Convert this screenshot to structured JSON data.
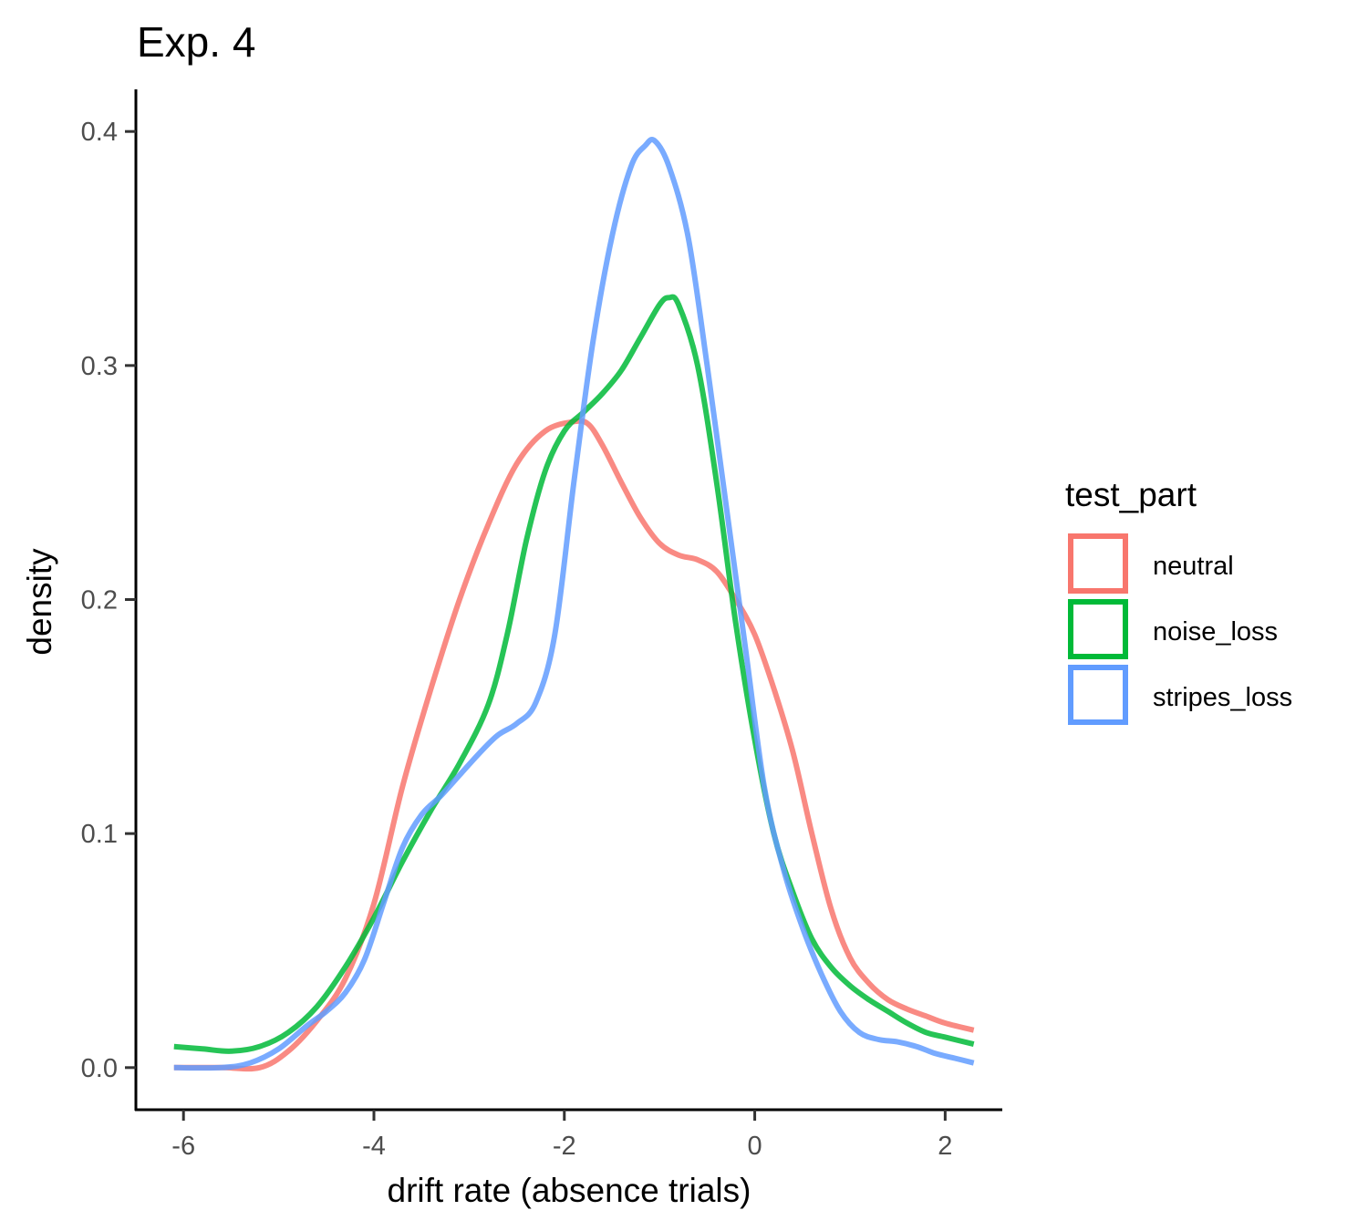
{
  "chart_data": {
    "type": "line",
    "title": "Exp. 4",
    "xlabel": "drift rate (absence trials)",
    "ylabel": "density",
    "xlim": [
      -6.5,
      2.6
    ],
    "ylim": [
      -0.018,
      0.418
    ],
    "x_ticks": [
      -6,
      -4,
      -2,
      0,
      2
    ],
    "y_ticks": [
      0.0,
      0.1,
      0.2,
      0.3,
      0.4
    ],
    "x_tick_labels": [
      "-6",
      "-4",
      "-2",
      "0",
      "2"
    ],
    "y_tick_labels": [
      "0.0",
      "0.1",
      "0.2",
      "0.3",
      "0.4"
    ],
    "grid": false,
    "legend": {
      "title": "test_part",
      "position": "right"
    },
    "series": [
      {
        "name": "neutral",
        "color": "#F8766D",
        "points": [
          [
            -6.1,
            0.0
          ],
          [
            -5.6,
            0.0
          ],
          [
            -5.2,
            0.0
          ],
          [
            -4.9,
            0.007
          ],
          [
            -4.6,
            0.02
          ],
          [
            -4.3,
            0.038
          ],
          [
            -4.0,
            0.07
          ],
          [
            -3.7,
            0.12
          ],
          [
            -3.4,
            0.162
          ],
          [
            -3.1,
            0.2
          ],
          [
            -2.8,
            0.232
          ],
          [
            -2.5,
            0.258
          ],
          [
            -2.2,
            0.272
          ],
          [
            -1.9,
            0.276
          ],
          [
            -1.75,
            0.275
          ],
          [
            -1.6,
            0.266
          ],
          [
            -1.4,
            0.25
          ],
          [
            -1.2,
            0.235
          ],
          [
            -1.0,
            0.224
          ],
          [
            -0.8,
            0.219
          ],
          [
            -0.6,
            0.217
          ],
          [
            -0.4,
            0.212
          ],
          [
            -0.2,
            0.2
          ],
          [
            0.0,
            0.185
          ],
          [
            0.2,
            0.162
          ],
          [
            0.4,
            0.135
          ],
          [
            0.6,
            0.1
          ],
          [
            0.8,
            0.068
          ],
          [
            1.0,
            0.047
          ],
          [
            1.2,
            0.036
          ],
          [
            1.4,
            0.029
          ],
          [
            1.6,
            0.025
          ],
          [
            1.8,
            0.022
          ],
          [
            2.0,
            0.019
          ],
          [
            2.3,
            0.016
          ]
        ]
      },
      {
        "name": "noise_loss",
        "color": "#00BA38",
        "points": [
          [
            -6.1,
            0.009
          ],
          [
            -5.8,
            0.008
          ],
          [
            -5.5,
            0.007
          ],
          [
            -5.2,
            0.009
          ],
          [
            -4.9,
            0.015
          ],
          [
            -4.6,
            0.026
          ],
          [
            -4.3,
            0.043
          ],
          [
            -4.0,
            0.064
          ],
          [
            -3.7,
            0.088
          ],
          [
            -3.4,
            0.11
          ],
          [
            -3.1,
            0.13
          ],
          [
            -2.8,
            0.155
          ],
          [
            -2.6,
            0.185
          ],
          [
            -2.4,
            0.225
          ],
          [
            -2.2,
            0.255
          ],
          [
            -2.0,
            0.272
          ],
          [
            -1.8,
            0.28
          ],
          [
            -1.6,
            0.288
          ],
          [
            -1.4,
            0.298
          ],
          [
            -1.2,
            0.312
          ],
          [
            -1.0,
            0.326
          ],
          [
            -0.9,
            0.329
          ],
          [
            -0.8,
            0.326
          ],
          [
            -0.6,
            0.3
          ],
          [
            -0.4,
            0.25
          ],
          [
            -0.2,
            0.19
          ],
          [
            0.0,
            0.14
          ],
          [
            0.2,
            0.1
          ],
          [
            0.4,
            0.075
          ],
          [
            0.6,
            0.055
          ],
          [
            0.8,
            0.043
          ],
          [
            1.0,
            0.035
          ],
          [
            1.2,
            0.029
          ],
          [
            1.4,
            0.024
          ],
          [
            1.6,
            0.019
          ],
          [
            1.8,
            0.015
          ],
          [
            2.0,
            0.013
          ],
          [
            2.3,
            0.01
          ]
        ]
      },
      {
        "name": "stripes_loss",
        "color": "#619CFF",
        "points": [
          [
            -6.1,
            0.0
          ],
          [
            -5.6,
            0.0
          ],
          [
            -5.3,
            0.002
          ],
          [
            -5.0,
            0.008
          ],
          [
            -4.7,
            0.018
          ],
          [
            -4.5,
            0.024
          ],
          [
            -4.3,
            0.032
          ],
          [
            -4.1,
            0.046
          ],
          [
            -3.9,
            0.07
          ],
          [
            -3.7,
            0.094
          ],
          [
            -3.5,
            0.108
          ],
          [
            -3.3,
            0.116
          ],
          [
            -3.1,
            0.125
          ],
          [
            -2.9,
            0.134
          ],
          [
            -2.7,
            0.142
          ],
          [
            -2.5,
            0.147
          ],
          [
            -2.3,
            0.156
          ],
          [
            -2.1,
            0.185
          ],
          [
            -1.9,
            0.25
          ],
          [
            -1.7,
            0.31
          ],
          [
            -1.5,
            0.355
          ],
          [
            -1.3,
            0.385
          ],
          [
            -1.15,
            0.394
          ],
          [
            -1.05,
            0.396
          ],
          [
            -0.9,
            0.385
          ],
          [
            -0.7,
            0.355
          ],
          [
            -0.5,
            0.3
          ],
          [
            -0.3,
            0.24
          ],
          [
            -0.1,
            0.18
          ],
          [
            0.1,
            0.12
          ],
          [
            0.3,
            0.085
          ],
          [
            0.5,
            0.06
          ],
          [
            0.7,
            0.04
          ],
          [
            0.9,
            0.024
          ],
          [
            1.1,
            0.015
          ],
          [
            1.3,
            0.012
          ],
          [
            1.5,
            0.011
          ],
          [
            1.7,
            0.009
          ],
          [
            1.9,
            0.006
          ],
          [
            2.1,
            0.004
          ],
          [
            2.3,
            0.002
          ]
        ]
      }
    ]
  }
}
